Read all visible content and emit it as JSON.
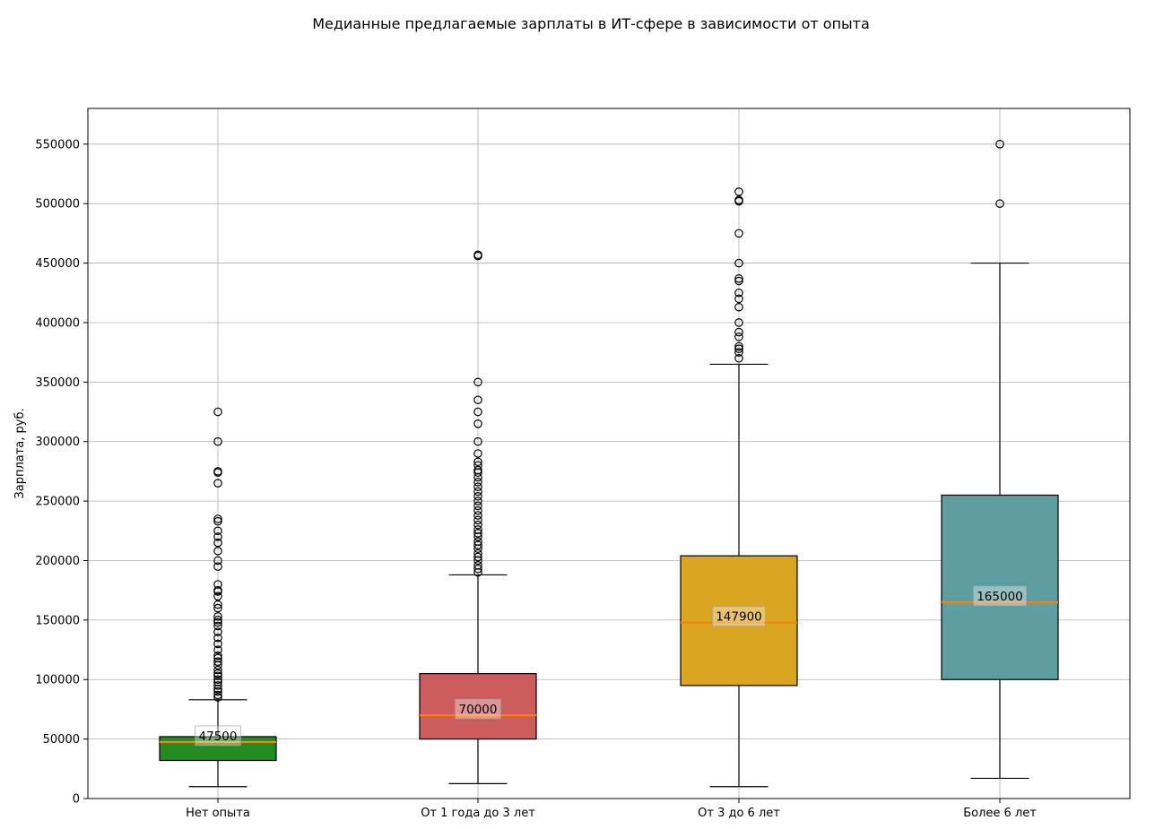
{
  "chart_data": {
    "type": "box",
    "title": "Медианные предлагаемые зарплаты в ИТ-сфере в зависимости от опыта",
    "xlabel": "",
    "ylabel": "Зарплата, руб.",
    "ylim": [
      0,
      580000
    ],
    "yticks": [
      0,
      50000,
      100000,
      150000,
      200000,
      250000,
      300000,
      350000,
      400000,
      450000,
      500000,
      550000
    ],
    "grid": true,
    "categories": [
      "Нет опыта",
      "От 1 года до 3 лет",
      "От 3 до 6 лет",
      "Более 6 лет"
    ],
    "boxes": [
      {
        "category": "Нет опыта",
        "color": "#228b22",
        "whisker_low": 10000,
        "q1": 32000,
        "median": 47500,
        "q3": 52000,
        "whisker_high": 83000,
        "median_label": "47500",
        "outliers": [
          85000,
          87000,
          90000,
          92000,
          95000,
          98000,
          100000,
          103000,
          105000,
          108000,
          112000,
          115000,
          118000,
          120000,
          125000,
          130000,
          135000,
          140000,
          145000,
          148000,
          150000,
          153000,
          160000,
          163000,
          170000,
          174000,
          175000,
          180000,
          195000,
          200000,
          208000,
          215000,
          220000,
          225000,
          233000,
          235000,
          265000,
          274000,
          275000,
          300000,
          325000
        ]
      },
      {
        "category": "От 1 года до 3 лет",
        "color": "#cd5c5c",
        "whisker_low": 12500,
        "q1": 50000,
        "median": 70000,
        "q3": 105000,
        "whisker_high": 188000,
        "median_label": "70000",
        "outliers": [
          190000,
          193000,
          196000,
          200000,
          203000,
          206000,
          210000,
          213000,
          216000,
          220000,
          223000,
          226000,
          230000,
          234000,
          238000,
          242000,
          246000,
          250000,
          254000,
          258000,
          262000,
          266000,
          270000,
          274000,
          276000,
          280000,
          283000,
          290000,
          300000,
          315000,
          325000,
          335000,
          350000,
          456000,
          457000
        ]
      },
      {
        "category": "От 3 до 6 лет",
        "color": "#daa520",
        "whisker_low": 10000,
        "q1": 95000,
        "median": 147900,
        "q3": 204000,
        "whisker_high": 365000,
        "median_label": "147900",
        "outliers": [
          370000,
          375000,
          378000,
          380000,
          388000,
          392000,
          400000,
          413000,
          420000,
          425000,
          435000,
          437000,
          450000,
          475000,
          502000,
          503000,
          510000
        ]
      },
      {
        "category": "Более 6 лет",
        "color": "#5f9ea0",
        "whisker_low": 17000,
        "q1": 100000,
        "median": 165000,
        "q3": 255000,
        "whisker_high": 450000,
        "median_label": "165000",
        "outliers": [
          500000,
          550000
        ]
      }
    ]
  }
}
